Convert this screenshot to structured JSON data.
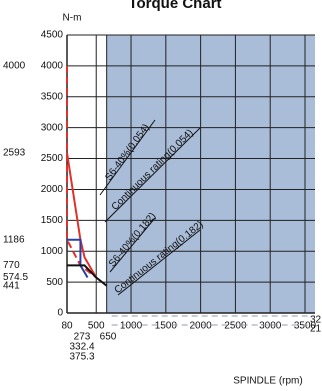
{
  "chart_data": {
    "type": "line",
    "title": "Torque Chart",
    "y_unit": "N-m",
    "x_label": "SPINDLE (rpm)",
    "xlim": [
      80,
      3500
    ],
    "xticks": [
      80,
      500,
      1000,
      1500,
      2000,
      2500,
      3000,
      3500
    ],
    "ylim": [
      0,
      4500
    ],
    "yticks": [
      0,
      500,
      1000,
      1500,
      2000,
      2500,
      3000,
      3500,
      4000,
      4500
    ],
    "grid": true,
    "shade_xlim": [
      650,
      3500
    ],
    "shade_color": "#a9bcd8",
    "left_ticks": [
      4000,
      2593,
      1186,
      770,
      574.5,
      441
    ],
    "bottom_ticks": [
      273,
      650,
      332.4,
      375.3
    ],
    "right_ticks": [
      32,
      21
    ],
    "series": [
      {
        "name": "S6-40%(0.054)",
        "color": "#e0312b",
        "dash": true,
        "x": [
          80,
          80,
          273,
          500
        ],
        "values": [
          4000,
          1186,
          770,
          574.5
        ]
      },
      {
        "name": "Continuous rating(0.054)",
        "color": "#e0312b",
        "dash": false,
        "x": [
          80,
          273,
          332.4,
          500
        ],
        "values": [
          2593,
          1186,
          900,
          574.5
        ]
      },
      {
        "name": "S6-40%(0.182)",
        "color": "#2b3fa8",
        "dash": false,
        "x": [
          80,
          273,
          273,
          375.3
        ],
        "values": [
          1186,
          1186,
          770,
          574.5
        ]
      },
      {
        "name": "Continuous rating(0.182)",
        "color": "#111111",
        "dash": false,
        "x": [
          80,
          332.4,
          500,
          650
        ],
        "values": [
          770,
          770,
          574.5,
          441
        ]
      }
    ]
  }
}
